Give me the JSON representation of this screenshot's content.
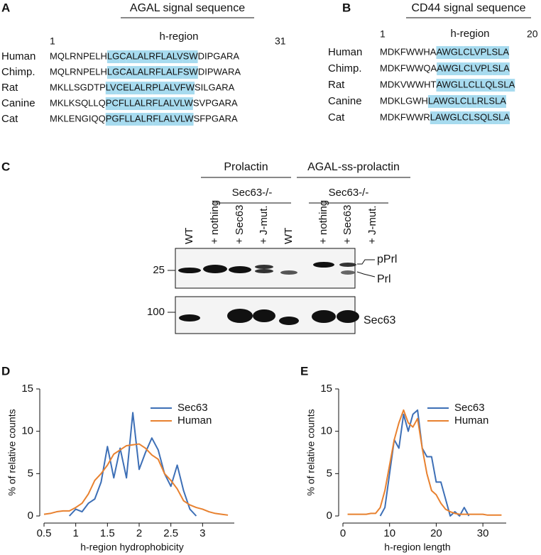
{
  "panel_a": {
    "label": "A",
    "title": "AGAL signal sequence",
    "region_label": "h-region",
    "start": 1,
    "end": 31,
    "rows": [
      {
        "species": "Human",
        "segments": [
          {
            "text": "MQLRNPELH",
            "style": "plain"
          },
          {
            "text": "LG",
            "style": "hl"
          },
          {
            "text": "C",
            "style": "red"
          },
          {
            "text": "ALAL",
            "style": "hl"
          },
          {
            "text": "R",
            "style": "red"
          },
          {
            "text": "FLALV",
            "style": "hl"
          },
          {
            "text": "S",
            "style": "red"
          },
          {
            "text": "W",
            "style": "hl"
          },
          {
            "text": "DIPGARA",
            "style": "plain"
          }
        ]
      },
      {
        "species": "Chimp.",
        "segments": [
          {
            "text": "MQLRNPELH",
            "style": "plain"
          },
          {
            "text": "LG",
            "style": "hl"
          },
          {
            "text": "C",
            "style": "red"
          },
          {
            "text": "ALAL",
            "style": "hl"
          },
          {
            "text": "R",
            "style": "red"
          },
          {
            "text": "FLALF",
            "style": "hl"
          },
          {
            "text": "S",
            "style": "red"
          },
          {
            "text": "W",
            "style": "hl"
          },
          {
            "text": "DIPWARA",
            "style": "plain"
          }
        ]
      },
      {
        "species": "Rat",
        "segments": [
          {
            "text": "MKLLSGDTP",
            "style": "plain"
          },
          {
            "text": "LV",
            "style": "hl"
          },
          {
            "text": "CE",
            "style": "red"
          },
          {
            "text": "LAL",
            "style": "hl"
          },
          {
            "text": "R",
            "style": "red"
          },
          {
            "text": "PLALVFW",
            "style": "hl"
          },
          {
            "text": "SILGARA",
            "style": "plain"
          }
        ]
      },
      {
        "species": "Canine",
        "segments": [
          {
            "text": "MKLKSQLLQ",
            "style": "plain"
          },
          {
            "text": "P",
            "style": "hl"
          },
          {
            "text": "C",
            "style": "red"
          },
          {
            "text": "FLLAL",
            "style": "hl"
          },
          {
            "text": "R",
            "style": "red"
          },
          {
            "text": "FLALVLW",
            "style": "hl"
          },
          {
            "text": "SVPGARA",
            "style": "plain"
          }
        ]
      },
      {
        "species": "Cat",
        "segments": [
          {
            "text": "MKLENGIQQ",
            "style": "plain"
          },
          {
            "text": "PGFLLAL",
            "style": "hl"
          },
          {
            "text": "R",
            "style": "red"
          },
          {
            "text": "FLALVLW",
            "style": "hl"
          },
          {
            "text": "SFPGARA",
            "style": "plain"
          }
        ]
      }
    ]
  },
  "panel_b": {
    "label": "B",
    "title": "CD44 signal sequence",
    "region_label": "h-region",
    "start": 1,
    "end": 20,
    "rows": [
      {
        "species": "Human",
        "segments": [
          {
            "text": "MDKFWWHA",
            "style": "plain"
          },
          {
            "text": "AWGL",
            "style": "hl"
          },
          {
            "text": "C",
            "style": "red"
          },
          {
            "text": "LVPL",
            "style": "hl"
          },
          {
            "text": "S",
            "style": "red"
          },
          {
            "text": "LA",
            "style": "hl"
          }
        ]
      },
      {
        "species": "Chimp.",
        "segments": [
          {
            "text": "MDKFWWQA",
            "style": "plain"
          },
          {
            "text": "AWGL",
            "style": "hl"
          },
          {
            "text": "C",
            "style": "red"
          },
          {
            "text": "LVPL",
            "style": "hl"
          },
          {
            "text": "S",
            "style": "red"
          },
          {
            "text": "LA",
            "style": "hl"
          }
        ]
      },
      {
        "species": "Rat",
        "segments": [
          {
            "text": "MDKVWWHT",
            "style": "plain"
          },
          {
            "text": "AWGLL",
            "style": "hl"
          },
          {
            "text": "C",
            "style": "red"
          },
          {
            "text": "LLQL",
            "style": "hl"
          },
          {
            "text": "S",
            "style": "red"
          },
          {
            "text": "LA",
            "style": "hl"
          }
        ]
      },
      {
        "species": "Canine",
        "segments": [
          {
            "text": "MDKLGWH",
            "style": "plain"
          },
          {
            "text": "LAWGL",
            "style": "hl"
          },
          {
            "text": "C",
            "style": "red"
          },
          {
            "text": "LL",
            "style": "hl"
          },
          {
            "text": "R",
            "style": "red"
          },
          {
            "text": "L",
            "style": "hl"
          },
          {
            "text": "S",
            "style": "red"
          },
          {
            "text": "LA",
            "style": "hl"
          }
        ]
      },
      {
        "species": "Cat",
        "segments": [
          {
            "text": "MDKFWWR",
            "style": "plain"
          },
          {
            "text": "LAWGL",
            "style": "hl"
          },
          {
            "text": "C",
            "style": "red"
          },
          {
            "text": "L",
            "style": "hl"
          },
          {
            "text": "S",
            "style": "red"
          },
          {
            "text": "QL",
            "style": "hl"
          },
          {
            "text": "S",
            "style": "red"
          },
          {
            "text": "LA",
            "style": "hl"
          }
        ]
      }
    ]
  },
  "panel_c": {
    "label": "C",
    "groups": [
      "Prolactin",
      "AGAL-ss-prolactin"
    ],
    "subgroups": [
      "Sec63-/-",
      "Sec63-/-"
    ],
    "lanes": [
      "WT",
      "+ nothing",
      "+ Sec63",
      "+ J-mut.",
      "WT",
      "+ nothing",
      "+ Sec63",
      "+ J-mut."
    ],
    "markers": [
      25,
      100
    ],
    "bands": [
      "pPrl",
      "Prl",
      "Sec63"
    ]
  },
  "chart_data": [
    {
      "type": "line",
      "panel": "D",
      "xlabel": "h-region hydrophobicity",
      "ylabel": "% of relative counts",
      "x": [
        0.5,
        0.6,
        0.7,
        0.8,
        0.9,
        1.0,
        1.1,
        1.2,
        1.3,
        1.4,
        1.5,
        1.6,
        1.7,
        1.8,
        1.9,
        2.0,
        2.1,
        2.2,
        2.3,
        2.4,
        2.5,
        2.6,
        2.7,
        2.8,
        2.9,
        3.0,
        3.1,
        3.2,
        3.3,
        3.4
      ],
      "series": [
        {
          "name": "Sec63",
          "color": "#3d6fb6",
          "values": [
            null,
            null,
            null,
            null,
            0,
            0.8,
            0.5,
            1.5,
            2.0,
            4,
            8.2,
            4.5,
            8,
            4.5,
            12.2,
            5.5,
            7.5,
            9.2,
            7.8,
            5,
            3.5,
            6,
            3,
            0.8,
            0,
            null,
            null,
            null,
            null,
            null
          ]
        },
        {
          "name": "Human",
          "color": "#e8812f",
          "values": [
            0.2,
            0.3,
            0.5,
            0.6,
            0.6,
            1.0,
            1.5,
            2.6,
            4.2,
            5.0,
            6.0,
            7.3,
            7.8,
            8.3,
            8.4,
            8.5,
            8.0,
            7.2,
            6.7,
            5.0,
            4.2,
            3.2,
            1.8,
            1.3,
            1.0,
            0.8,
            0.5,
            0.3,
            0.2,
            0.1
          ]
        }
      ],
      "xlim": [
        0.5,
        3.5
      ],
      "xticks": [
        0.5,
        1,
        1.5,
        2,
        2.5,
        3
      ],
      "ylim": [
        0,
        15
      ],
      "yticks": [
        0,
        5,
        10,
        15
      ]
    },
    {
      "type": "line",
      "panel": "E",
      "xlabel": "h-region length",
      "ylabel": "% of relative counts",
      "x": [
        1,
        2,
        3,
        4,
        5,
        6,
        7,
        8,
        9,
        10,
        11,
        12,
        13,
        14,
        15,
        16,
        17,
        18,
        19,
        20,
        21,
        22,
        23,
        24,
        25,
        26,
        27,
        28,
        29,
        30,
        31,
        32,
        33,
        34
      ],
      "series": [
        {
          "name": "Sec63",
          "color": "#3d6fb6",
          "values": [
            null,
            null,
            null,
            null,
            null,
            null,
            null,
            0,
            1,
            5,
            9,
            8,
            12,
            10,
            12,
            12.5,
            8,
            7,
            7,
            4,
            4,
            2,
            0,
            0.5,
            0,
            1,
            0,
            null,
            null,
            null,
            null,
            null,
            null,
            null
          ]
        },
        {
          "name": "Human",
          "color": "#e8812f",
          "values": [
            0.2,
            0.2,
            0.2,
            0.2,
            0.2,
            0.3,
            0.3,
            1,
            3,
            6,
            9,
            11,
            12.5,
            11,
            10.5,
            11.5,
            8,
            5,
            3,
            2.5,
            1.5,
            0.8,
            0.5,
            0.3,
            0.2,
            0.2,
            0.2,
            0.2,
            0.2,
            0.2,
            0.1,
            0.1,
            0.1,
            0.1
          ]
        }
      ],
      "xlim": [
        0,
        35
      ],
      "xticks": [
        0,
        10,
        20,
        30
      ],
      "ylim": [
        0,
        15
      ],
      "yticks": [
        0,
        5,
        10,
        15
      ]
    }
  ]
}
